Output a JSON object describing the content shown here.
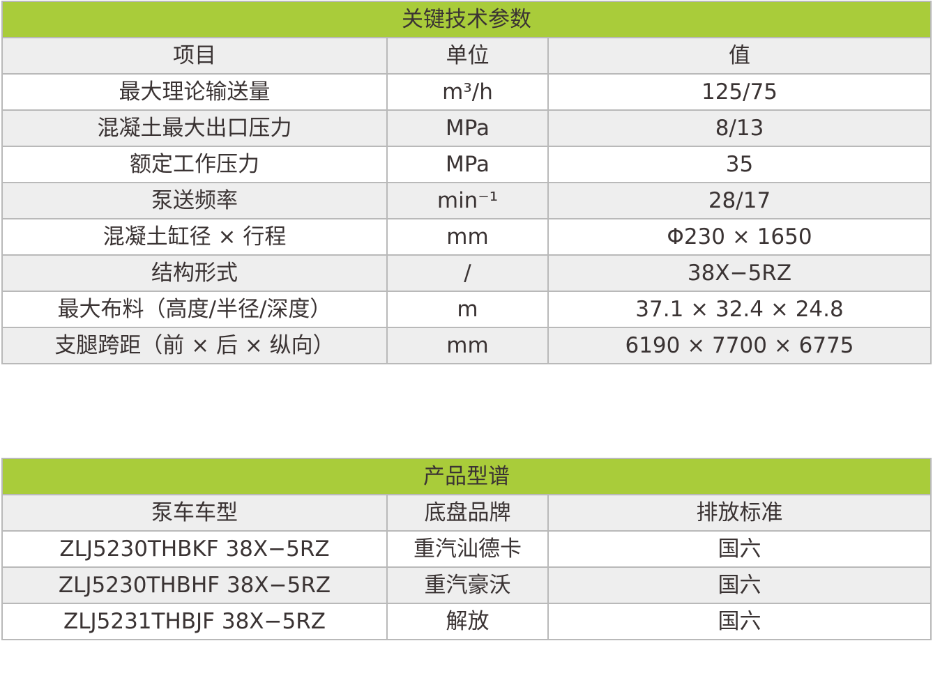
{
  "params_table": {
    "title": "关键技术参数",
    "headers": [
      "项目",
      "单位",
      "值"
    ],
    "rows": [
      [
        "最大理论输送量",
        "m³/h",
        "125/75"
      ],
      [
        "混凝土最大出口压力",
        "MPa",
        "8/13"
      ],
      [
        "额定工作压力",
        "MPa",
        "35"
      ],
      [
        "泵送频率",
        "min⁻¹",
        "28/17"
      ],
      [
        "混凝土缸径 × 行程",
        "mm",
        "Φ230 × 1650"
      ],
      [
        "结构形式",
        "/",
        "38X−5RZ"
      ],
      [
        "最大布料（高度/半径/深度）",
        "m",
        "37.1 × 32.4 × 24.8"
      ],
      [
        "支腿跨距（前 × 后 × 纵向）",
        "mm",
        "6190 × 7700 × 6775"
      ]
    ]
  },
  "models_table": {
    "title": "产品型谱",
    "headers": [
      "泵车车型",
      "底盘品牌",
      "排放标准"
    ],
    "rows": [
      [
        "ZLJ5230THBKF 38X−5RZ",
        "重汽汕德卡",
        "国六"
      ],
      [
        "ZLJ5230THBHF 38X−5RZ",
        "重汽豪沃",
        "国六"
      ],
      [
        "ZLJ5231THBJF 38X−5RZ",
        "解放",
        "国六"
      ]
    ]
  },
  "colors": {
    "header_green": "#a9cc3a",
    "row_gray": "#eeeeee",
    "border": "#b9b9b9",
    "text": "#3a3333"
  }
}
